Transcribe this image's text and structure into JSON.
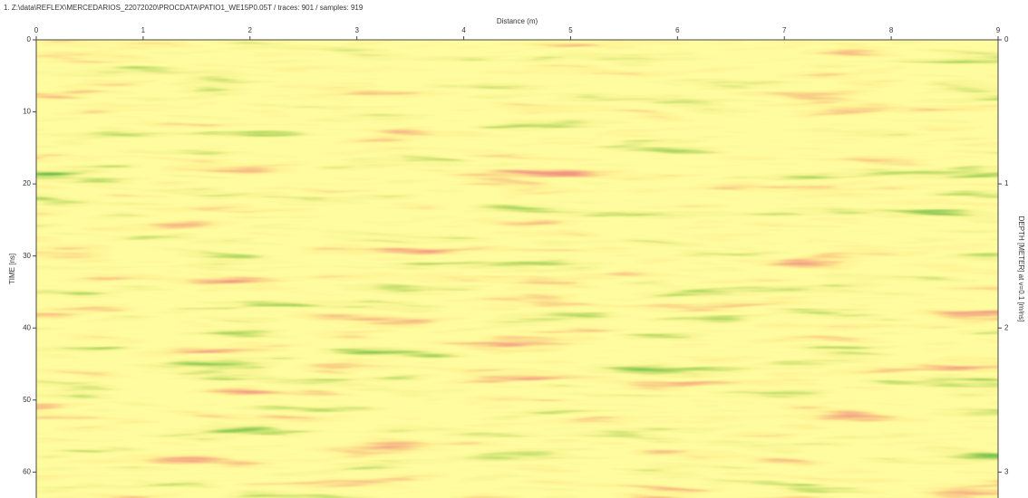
{
  "chart_data": {
    "type": "radargram",
    "title": "1. Z:\\data\\REFLEX\\MERCEDARIOS_22072020\\PROCDATA\\PATIO1_WE15P0.05T / traces: 901 / samples: 919",
    "x_label": "Distance (m)",
    "y_label": "TIME [ns]",
    "y2_label": "DEPTH [METER] at v=0.1 [m/ns]",
    "xlim": [
      0,
      9
    ],
    "xticks": [
      0,
      1,
      2,
      3,
      4,
      5,
      6,
      7,
      8,
      9
    ],
    "ylim": [
      0,
      63.6
    ],
    "yticks": [
      0,
      10,
      20,
      30,
      40,
      50,
      60
    ],
    "y2lim": [
      0,
      3.18
    ],
    "y2ticks": [
      0,
      1,
      2,
      3
    ]
  }
}
